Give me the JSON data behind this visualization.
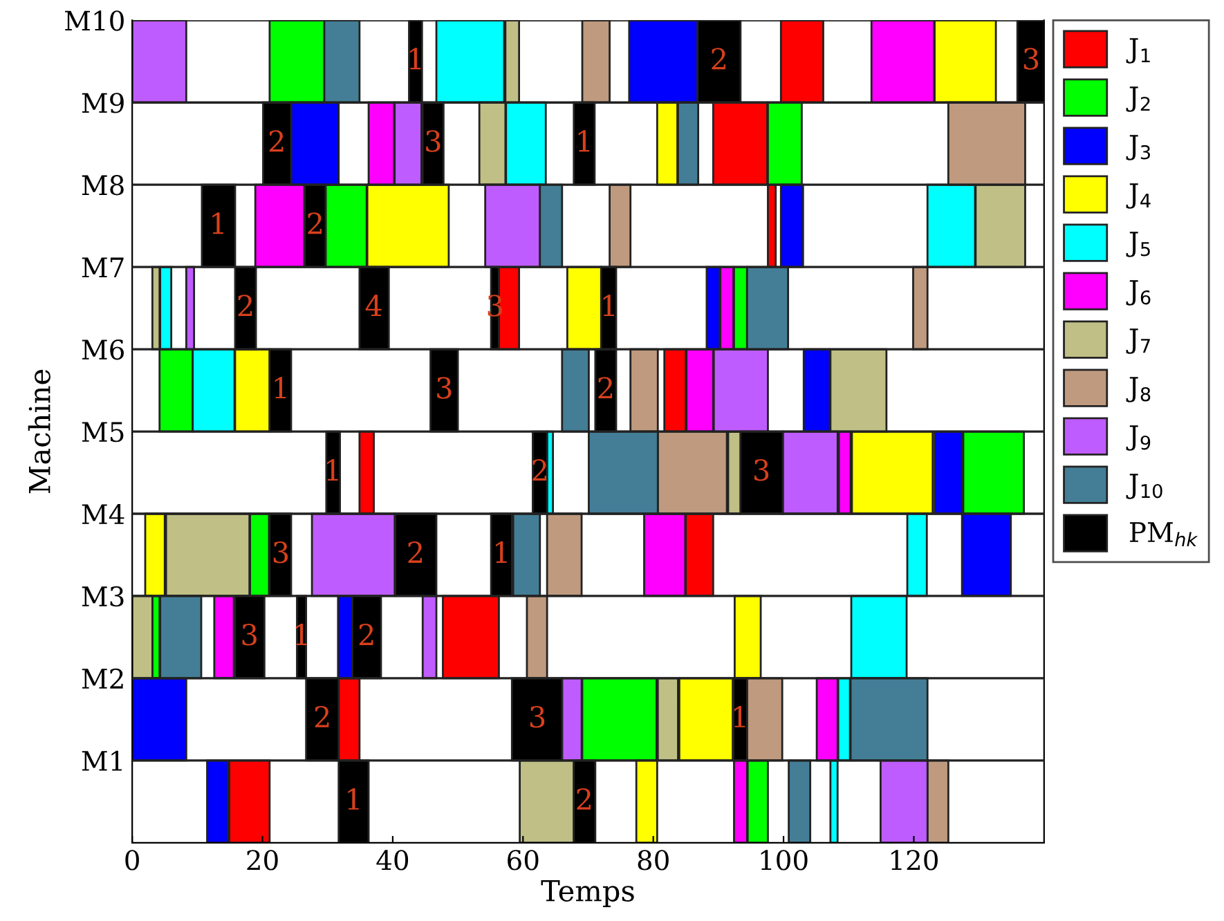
{
  "chart_data": {
    "type": "bar",
    "orientation": "horizontal",
    "xlabel": "Temps",
    "ylabel": "Machine",
    "categories": [
      "M10",
      "M9",
      "M8",
      "M7",
      "M6",
      "M5",
      "M4",
      "M3",
      "M2",
      "M1"
    ],
    "xlim": [
      0,
      140
    ],
    "xticks": [
      0,
      20,
      40,
      60,
      80,
      100,
      120
    ],
    "grid": "y",
    "legend": "right",
    "series": [
      {
        "name": "J$_{1}$",
        "color": "#ff0000",
        "base": [
          99.6,
          89.2,
          97.6,
          56.3,
          81.7,
          34.9,
          85,
          47.7,
          31.7,
          14.9
        ],
        "values": [
          6.5,
          8.3,
          1.2,
          3.1,
          3.3,
          2.2,
          4.2,
          8.6,
          3.2,
          6.2
        ]
      },
      {
        "name": "J$_{2}$",
        "color": "#00ff00",
        "base": [
          21.1,
          97.6,
          29.7,
          92.4,
          4.2,
          127.6,
          18.1,
          3.1,
          69.1,
          94.5
        ],
        "values": [
          8.4,
          5.2,
          6.3,
          2,
          5.1,
          9.3,
          2.9,
          1.1,
          11.4,
          3.1
        ]
      },
      {
        "name": "J$_{3}$",
        "color": "#0000ff",
        "base": [
          76.3,
          24.4,
          99.6,
          88.2,
          103.1,
          123.2,
          127.4,
          31.6,
          0,
          11.5
        ],
        "values": [
          10.5,
          7.3,
          3.4,
          2,
          4,
          4.2,
          7.5,
          2.2,
          8.3,
          3.2
        ]
      },
      {
        "name": "J$_{4}$",
        "color": "#ffff00",
        "base": [
          123.2,
          80.6,
          36.1,
          66.8,
          15.8,
          110.5,
          2,
          92.5,
          84,
          77.4
        ],
        "values": [
          9.4,
          3.1,
          12.5,
          5.2,
          5.3,
          12.4,
          3,
          4,
          8.2,
          3.2
        ]
      },
      {
        "name": "J$_{5}$",
        "color": "#00ffff",
        "base": [
          46.7,
          57.4,
          122.1,
          4.3,
          9.3,
          63.7,
          119,
          110.4,
          108.4,
          107.2
        ],
        "values": [
          10.4,
          6.1,
          7.3,
          1.7,
          6.4,
          0.9,
          3,
          8.5,
          1.8,
          1.1
        ]
      },
      {
        "name": "J$_{6}$",
        "color": "#ff00ff",
        "base": [
          113.5,
          36.3,
          18.9,
          90.3,
          85.1,
          108.5,
          78.6,
          12.6,
          105.1,
          92.4
        ],
        "values": [
          9.6,
          3.9,
          7.5,
          2,
          4.1,
          1.8,
          6.3,
          3,
          3.2,
          2
        ]
      },
      {
        "name": "J$_{7}$",
        "color": "#bfbf86",
        "base": [
          57.3,
          53.3,
          129.5,
          3.1,
          107.2,
          91.5,
          5.2,
          0,
          80.7,
          59.5
        ],
        "values": [
          2.1,
          4,
          7.6,
          1.1,
          8.6,
          1.9,
          12.8,
          3.1,
          3.1,
          8.3
        ]
      },
      {
        "name": "J$_{8}$",
        "color": "#bf9a7e",
        "base": [
          69.1,
          125.3,
          73.3,
          119.9,
          76.5,
          80.7,
          63.7,
          60.6,
          94.4,
          122.1
        ],
        "values": [
          4.2,
          11.8,
          3.2,
          2.2,
          4.2,
          10.6,
          5.3,
          3.1,
          5.4,
          3.2
        ]
      },
      {
        "name": "J$_{9}$",
        "color": "#bf5cff",
        "base": [
          0,
          40.3,
          54.2,
          8.3,
          89.3,
          99.9,
          27.6,
          44.6,
          66,
          114.9
        ],
        "values": [
          8.3,
          4.1,
          8.4,
          1.2,
          8.3,
          8.4,
          12.7,
          2.1,
          3,
          7.2
        ]
      },
      {
        "name": "J$_{10}$",
        "color": "#437e96",
        "base": [
          29.5,
          83.8,
          62.6,
          94.4,
          66,
          70.1,
          58.5,
          4.3,
          110.3,
          100.8
        ],
        "values": [
          5.4,
          3.1,
          3.4,
          6.3,
          4.1,
          10.6,
          4.1,
          6.3,
          11.8,
          3.3
        ]
      },
      {
        "name": "PM$_{hk}$",
        "color": "#000000",
        "base": [
          42.5,
          20.1,
          10.7,
          15.8,
          21.1,
          29.8,
          21.1,
          15.8,
          26.7,
          31.7
        ],
        "values": [
          2,
          4.3,
          5.1,
          3.2,
          3.3,
          2.1,
          3.3,
          4.5,
          5,
          4.6
        ]
      },
      {
        "color": "#000000",
        "base": [
          86.8,
          44.6,
          26.5,
          34.9,
          45.8,
          61.5,
          40.4,
          25.3,
          58.3,
          67.8
        ],
        "values": [
          6.6,
          3.2,
          3.2,
          4.5,
          4.2,
          2.2,
          6.3,
          1.4,
          7.7,
          3.3
        ]
      },
      {
        "color": "#000000",
        "base": [
          135.9,
          67.8,
          null,
          55.1,
          71.1,
          93.4,
          55.1,
          33.8,
          92.3,
          null
        ],
        "values": [
          4.1,
          3.2,
          null,
          1.2,
          3.2,
          6.5,
          3.2,
          4.4,
          2.1,
          null
        ]
      },
      {
        "color": "#000000",
        "base": [
          null,
          null,
          null,
          72,
          null,
          null,
          null,
          null,
          null,
          null
        ],
        "values": [
          null,
          null,
          null,
          2.3,
          null,
          null,
          null,
          null,
          null,
          null
        ]
      }
    ],
    "annotations": [
      {
        "text": "1",
        "x": 43.5,
        "y": "M10"
      },
      {
        "text": "2",
        "x": 90.1,
        "y": "M10"
      },
      {
        "text": "3",
        "x": 138,
        "y": "M10"
      },
      {
        "text": "2",
        "x": 22.2,
        "y": "M9"
      },
      {
        "text": "3",
        "x": 46.2,
        "y": "M9"
      },
      {
        "text": "1",
        "x": 69.4,
        "y": "M9"
      },
      {
        "text": "1",
        "x": 13.2,
        "y": "M8"
      },
      {
        "text": "2",
        "x": 28.1,
        "y": "M8"
      },
      {
        "text": "2",
        "x": 17.4,
        "y": "M7"
      },
      {
        "text": "4",
        "x": 37.1,
        "y": "M7"
      },
      {
        "text": "3",
        "x": 55.7,
        "y": "M7"
      },
      {
        "text": "1",
        "x": 73.2,
        "y": "M7"
      },
      {
        "text": "1",
        "x": 22.8,
        "y": "M6"
      },
      {
        "text": "3",
        "x": 47.9,
        "y": "M6"
      },
      {
        "text": "2",
        "x": 72.7,
        "y": "M6"
      },
      {
        "text": "1",
        "x": 30.8,
        "y": "M5"
      },
      {
        "text": "2",
        "x": 62.6,
        "y": "M5"
      },
      {
        "text": "3",
        "x": 96.6,
        "y": "M5"
      },
      {
        "text": "3",
        "x": 22.8,
        "y": "M4"
      },
      {
        "text": "2",
        "x": 43.5,
        "y": "M4"
      },
      {
        "text": "1",
        "x": 56.7,
        "y": "M4"
      },
      {
        "text": "3",
        "x": 18,
        "y": "M3"
      },
      {
        "text": "1",
        "x": 26,
        "y": "M3"
      },
      {
        "text": "2",
        "x": 36,
        "y": "M3"
      },
      {
        "text": "2",
        "x": 29.2,
        "y": "M2"
      },
      {
        "text": "3",
        "x": 62.2,
        "y": "M2"
      },
      {
        "text": "1",
        "x": 93.3,
        "y": "M2"
      },
      {
        "text": "1",
        "x": 34,
        "y": "M1"
      },
      {
        "text": "2",
        "x": 69.4,
        "y": "M1"
      }
    ]
  }
}
